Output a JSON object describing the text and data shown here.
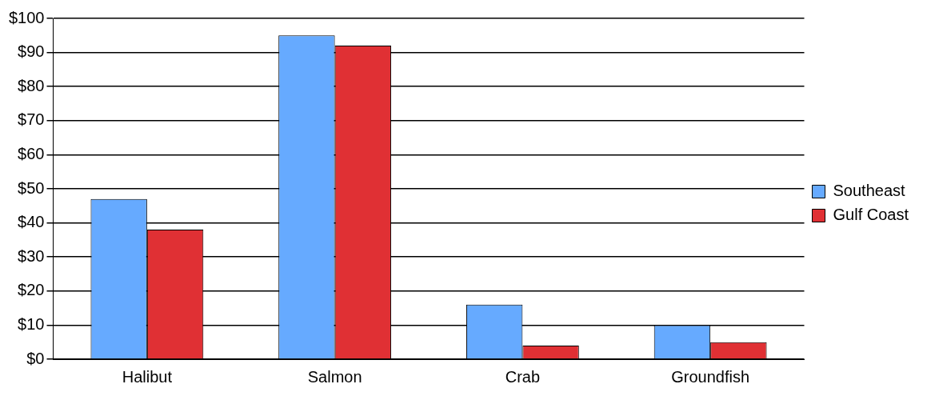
{
  "chart_data": {
    "type": "bar",
    "categories": [
      "Halibut",
      "Salmon",
      "Crab",
      "Groundfish"
    ],
    "series": [
      {
        "name": "Southeast",
        "color": "#66aaff",
        "values": [
          47,
          95,
          16,
          10
        ]
      },
      {
        "name": "Gulf Coast",
        "color": "#e03034",
        "values": [
          38,
          92,
          4,
          5
        ]
      }
    ],
    "ylim": [
      0,
      100
    ],
    "yticks": [
      {
        "value": 0,
        "label": "$0"
      },
      {
        "value": 10,
        "label": "$10"
      },
      {
        "value": 20,
        "label": "$20"
      },
      {
        "value": 30,
        "label": "$30"
      },
      {
        "value": 40,
        "label": "$40"
      },
      {
        "value": 50,
        "label": "$50"
      },
      {
        "value": 60,
        "label": "$60"
      },
      {
        "value": 70,
        "label": "$70"
      },
      {
        "value": 80,
        "label": "$80"
      },
      {
        "value": 90,
        "label": "$90"
      },
      {
        "value": 100,
        "label": "$100"
      }
    ],
    "grid": "y",
    "legend": "right"
  }
}
